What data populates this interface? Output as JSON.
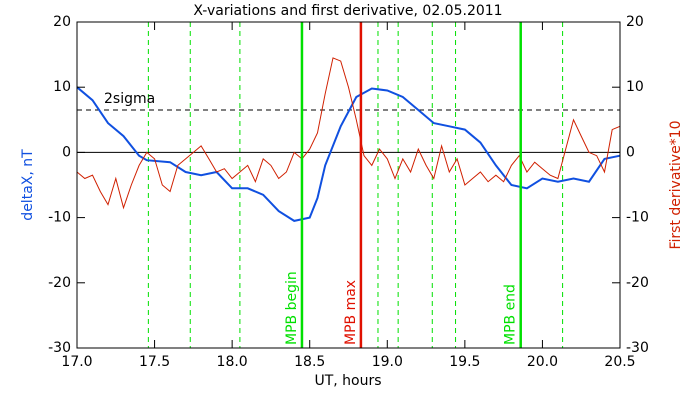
{
  "chart_data": {
    "type": "line",
    "title": "X-variations and first derivative, 02.05.2011",
    "x_label": "UT, hours",
    "y_label": "deltaX, nT",
    "y2_label": "First derivative*10",
    "xlim": [
      17.0,
      20.5
    ],
    "xticks": [
      {
        "value": 17,
        "label": "17.0"
      },
      {
        "value": 17.5,
        "label": "17.5"
      },
      {
        "value": 18,
        "label": "18.0"
      },
      {
        "value": 18.5,
        "label": "18.5"
      },
      {
        "value": 19,
        "label": "19.0"
      },
      {
        "value": 19.5,
        "label": "19.5"
      },
      {
        "value": 20,
        "label": "20.0"
      },
      {
        "value": 20.5,
        "label": "20.5"
      }
    ],
    "ylim": [
      -30,
      20
    ],
    "yticks": [
      -30,
      -20,
      -10,
      0,
      10,
      20
    ],
    "y2lim": [
      -30,
      20
    ],
    "y2ticks": [
      -30,
      -20,
      -10,
      0,
      10,
      20
    ],
    "series": [
      {
        "name": "deltaX, nT",
        "color": "#1050e0",
        "axis": "y",
        "x": [
          17.0,
          17.1,
          17.2,
          17.3,
          17.4,
          17.45,
          17.6,
          17.7,
          17.8,
          17.9,
          18.0,
          18.1,
          18.2,
          18.3,
          18.4,
          18.5,
          18.55,
          18.6,
          18.7,
          18.8,
          18.9,
          19.0,
          19.1,
          19.2,
          19.3,
          19.4,
          19.5,
          19.6,
          19.7,
          19.8,
          19.9,
          20.0,
          20.1,
          20.2,
          20.3,
          20.4,
          20.5
        ],
        "values": [
          10,
          8,
          4.5,
          2.5,
          -0.5,
          -1.2,
          -1.5,
          -3,
          -3.5,
          -3,
          -5.5,
          -5.5,
          -6.5,
          -9,
          -10.5,
          -10,
          -7,
          -2,
          4,
          8.5,
          9.8,
          9.5,
          8.5,
          6.5,
          4.5,
          4,
          3.5,
          1.5,
          -2,
          -5,
          -5.5,
          -4,
          -4.5,
          -4,
          -4.5,
          -1,
          -0.5
        ]
      },
      {
        "name": "First derivative*10",
        "color": "#d02000",
        "axis": "y2",
        "x": [
          17.0,
          17.05,
          17.1,
          17.15,
          17.2,
          17.25,
          17.3,
          17.35,
          17.4,
          17.45,
          17.5,
          17.55,
          17.6,
          17.65,
          17.7,
          17.75,
          17.8,
          17.85,
          17.9,
          17.95,
          18.0,
          18.05,
          18.1,
          18.15,
          18.2,
          18.25,
          18.3,
          18.35,
          18.4,
          18.45,
          18.5,
          18.55,
          18.6,
          18.65,
          18.7,
          18.75,
          18.8,
          18.85,
          18.9,
          18.95,
          19.0,
          19.05,
          19.1,
          19.15,
          19.2,
          19.25,
          19.3,
          19.35,
          19.4,
          19.45,
          19.5,
          19.55,
          19.6,
          19.65,
          19.7,
          19.75,
          19.8,
          19.85,
          19.9,
          19.95,
          20.0,
          20.05,
          20.1,
          20.15,
          20.2,
          20.25,
          20.3,
          20.35,
          20.4,
          20.45,
          20.5
        ],
        "values": [
          -3,
          -4,
          -3.5,
          -6,
          -8,
          -4,
          -8.5,
          -5,
          -2,
          0,
          -1,
          -5,
          -6,
          -2,
          -1,
          0,
          1,
          -1,
          -3,
          -2.5,
          -4,
          -3,
          -2,
          -4.5,
          -1,
          -2,
          -4,
          -3,
          0,
          -1,
          0.5,
          3,
          9,
          14.5,
          14,
          10,
          5,
          -0.5,
          -2,
          0.5,
          -1,
          -4,
          -1,
          -3,
          0.5,
          -2,
          -4,
          1,
          -3,
          -1,
          -5,
          -4,
          -3,
          -4.5,
          -3.5,
          -4.5,
          -2,
          -0.5,
          -3,
          -1.5,
          -2.5,
          -3.5,
          -4,
          0.5,
          5,
          2.5,
          0,
          -0.5,
          -3,
          3.5,
          4
        ]
      }
    ],
    "dashed_x": [
      17.46,
      17.73,
      18.05,
      18.94,
      19.07,
      19.29,
      19.44,
      20.13
    ],
    "dashed_x_color": "#00e000",
    "markers": [
      {
        "x": 18.45,
        "label": "MPB begin",
        "color": "#00e000"
      },
      {
        "x": 18.83,
        "label": "MPB max",
        "color": "#e01000"
      },
      {
        "x": 19.86,
        "label": "MPB end",
        "color": "#00e000"
      }
    ],
    "hlines": [
      {
        "y": 6.5,
        "label": "2sigma",
        "style": "dashed"
      },
      {
        "y": 0,
        "style": "solid"
      }
    ]
  }
}
